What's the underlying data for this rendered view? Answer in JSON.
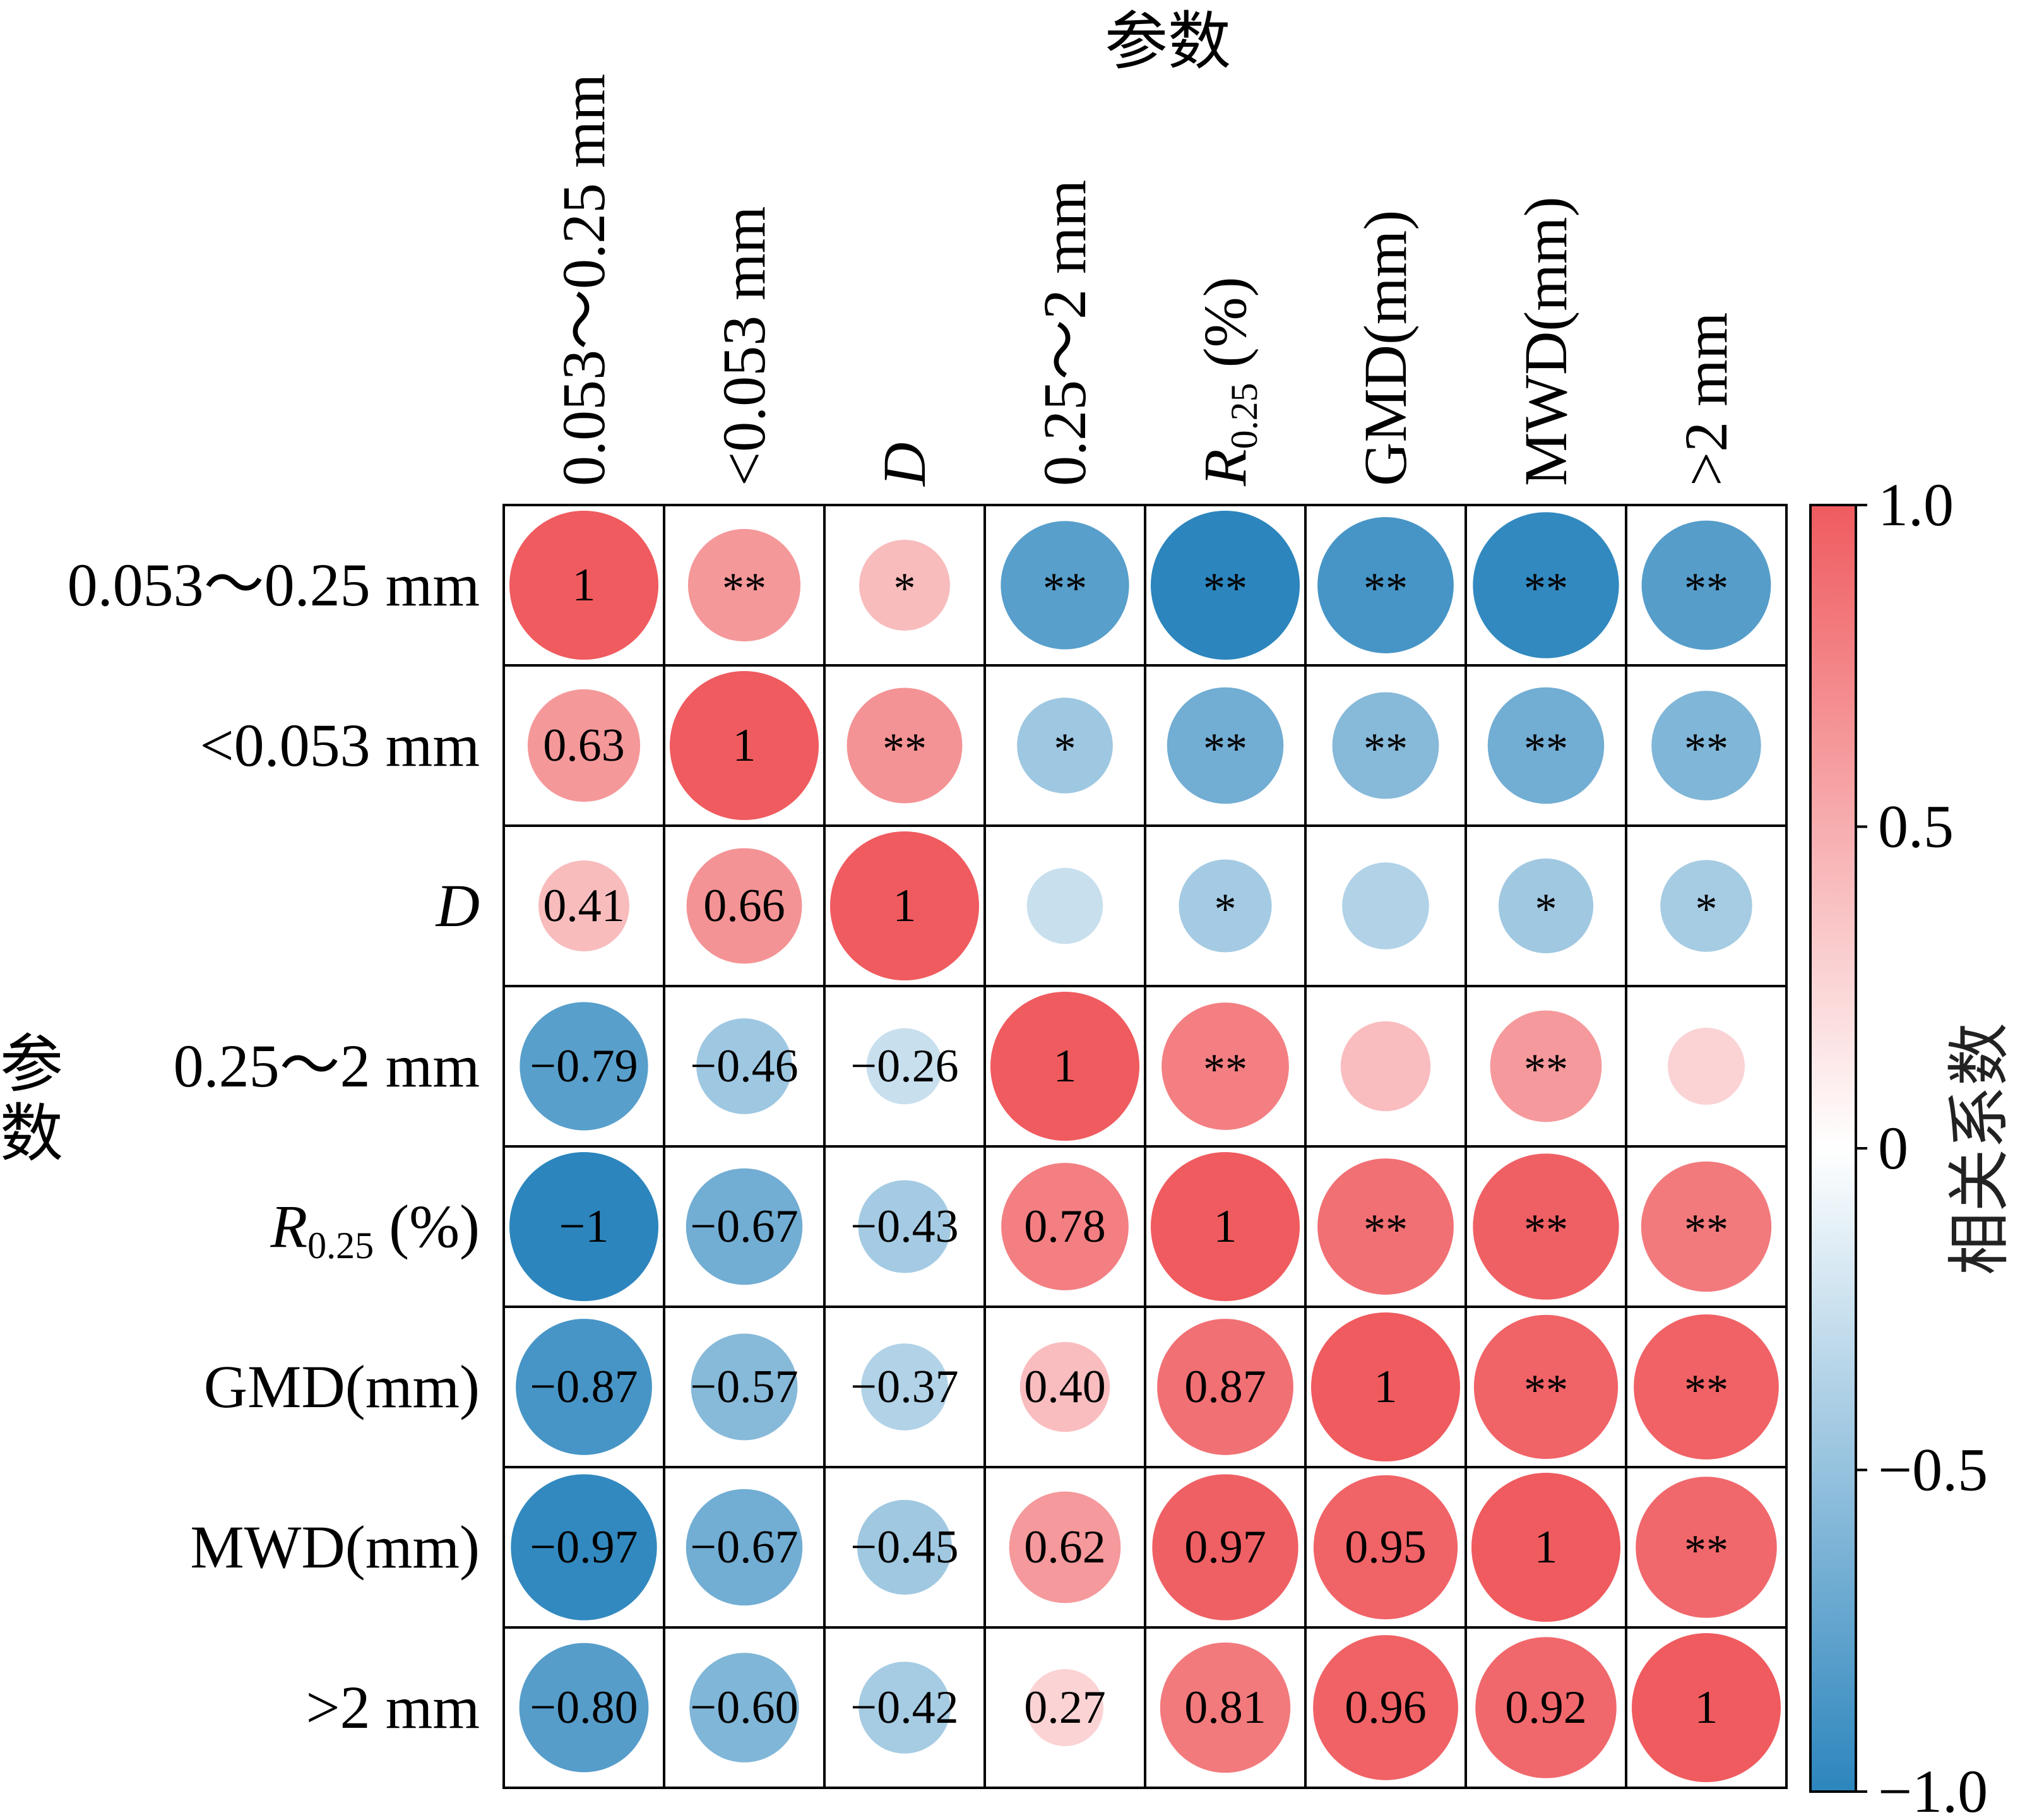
{
  "chart_data": {
    "type": "heatmap",
    "subtype": "correlation-circle-matrix",
    "title": "参数",
    "xlabel": "参数",
    "ylabel": "参数",
    "variables": [
      {
        "parts": [
          {
            "t": "0.053～0.25 mm"
          }
        ]
      },
      {
        "parts": [
          {
            "t": "<0.053 mm"
          }
        ]
      },
      {
        "parts": [
          {
            "t": "D",
            "italic": true
          }
        ]
      },
      {
        "parts": [
          {
            "t": "0.25～2 mm"
          }
        ]
      },
      {
        "parts": [
          {
            "t": "R",
            "italic": true
          },
          {
            "t": "0.25",
            "sub": true
          },
          {
            "t": " (%)"
          }
        ]
      },
      {
        "parts": [
          {
            "t": "GMD(mm)"
          }
        ]
      },
      {
        "parts": [
          {
            "t": "MWD(mm)"
          }
        ]
      },
      {
        "parts": [
          {
            "t": ">2 mm"
          }
        ]
      }
    ],
    "matrix": [
      [
        1,
        0.63,
        0.41,
        -0.79,
        -1,
        -0.87,
        -0.97,
        -0.8
      ],
      [
        0.63,
        1,
        0.66,
        -0.46,
        -0.67,
        -0.57,
        -0.67,
        -0.6
      ],
      [
        0.41,
        0.66,
        1,
        -0.26,
        -0.43,
        -0.37,
        -0.45,
        -0.42
      ],
      [
        -0.79,
        -0.46,
        -0.26,
        1,
        0.78,
        0.4,
        0.62,
        0.27
      ],
      [
        -1,
        -0.67,
        -0.43,
        0.78,
        1,
        0.87,
        0.97,
        0.81
      ],
      [
        -0.87,
        -0.57,
        -0.37,
        0.4,
        0.87,
        1,
        0.95,
        0.96
      ],
      [
        -0.97,
        -0.67,
        -0.45,
        0.62,
        0.97,
        0.95,
        1,
        0.92
      ],
      [
        -0.8,
        -0.6,
        -0.42,
        0.27,
        0.81,
        0.96,
        0.92,
        1
      ]
    ],
    "lower_labels": [
      [
        "1",
        "",
        "",
        "",
        "",
        "",
        "",
        ""
      ],
      [
        "0.63",
        "1",
        "",
        "",
        "",
        "",
        "",
        ""
      ],
      [
        "0.41",
        "0.66",
        "1",
        "",
        "",
        "",
        "",
        ""
      ],
      [
        "−0.79",
        "−0.46",
        "−0.26",
        "1",
        "",
        "",
        "",
        ""
      ],
      [
        "−1",
        "−0.67",
        "−0.43",
        "0.78",
        "1",
        "",
        "",
        ""
      ],
      [
        "−0.87",
        "−0.57",
        "−0.37",
        "0.40",
        "0.87",
        "1",
        "",
        ""
      ],
      [
        "−0.97",
        "−0.67",
        "−0.45",
        "0.62",
        "0.97",
        "0.95",
        "1",
        ""
      ],
      [
        "−0.80",
        "−0.60",
        "−0.42",
        "0.27",
        "0.81",
        "0.96",
        "0.92",
        "1"
      ]
    ],
    "significance": [
      [
        "",
        "**",
        "*",
        "**",
        "**",
        "**",
        "**",
        "**"
      ],
      [
        "",
        "",
        "**",
        "*",
        "**",
        "**",
        "**",
        "**"
      ],
      [
        "",
        "",
        "",
        "",
        "*",
        "",
        "*",
        "*"
      ],
      [
        "",
        "",
        "",
        "",
        "**",
        "",
        "**",
        ""
      ],
      [
        "",
        "",
        "",
        "",
        "",
        "**",
        "**",
        "**"
      ],
      [
        "",
        "",
        "",
        "",
        "",
        "",
        "**",
        "**"
      ],
      [
        "",
        "",
        "",
        "",
        "",
        "",
        "",
        "**"
      ],
      [
        "",
        "",
        "",
        "",
        "",
        "",
        "",
        ""
      ]
    ],
    "colorbar": {
      "label": "相关系数",
      "range": [
        -1.0,
        1.0
      ],
      "ticks": [
        1.0,
        0.5,
        0,
        -0.5,
        -1.0
      ],
      "tick_labels": [
        "1.0",
        "0.5",
        "0",
        "−0.5",
        "−1.0"
      ],
      "colors": {
        "neg": "#2c85bd",
        "mid": "#ffffff",
        "pos": "#ef5b5f"
      }
    }
  }
}
